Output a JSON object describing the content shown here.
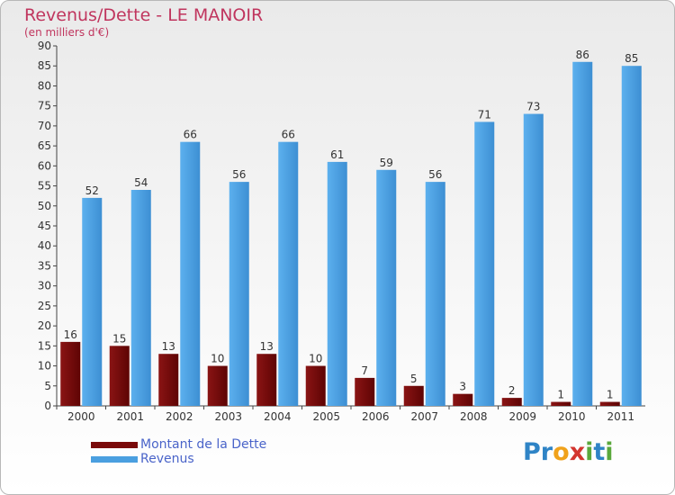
{
  "chart_data": {
    "type": "bar",
    "title": "Revenus/Dette - LE MANOIR",
    "subtitle": "(en milliers d'€)",
    "categories": [
      "2000",
      "2001",
      "2002",
      "2003",
      "2004",
      "2005",
      "2006",
      "2007",
      "2008",
      "2009",
      "2010",
      "2011"
    ],
    "series": [
      {
        "name": "Montant de la Dette",
        "color": "#7a0a0a",
        "values": [
          16,
          15,
          13,
          10,
          13,
          10,
          7,
          5,
          3,
          2,
          1,
          1
        ]
      },
      {
        "name": "Revenus",
        "color": "#4a9fe0",
        "values": [
          52,
          54,
          66,
          56,
          66,
          61,
          59,
          56,
          71,
          73,
          86,
          85
        ]
      }
    ],
    "ylim": [
      0,
      90
    ],
    "yticks": [
      0,
      5,
      10,
      15,
      20,
      25,
      30,
      35,
      40,
      45,
      50,
      55,
      60,
      65,
      70,
      75,
      80,
      85,
      90
    ],
    "grid": false,
    "legend": "bottom-left"
  },
  "logo": {
    "letters": [
      {
        "ch": "P",
        "color": "#2f84c6"
      },
      {
        "ch": "r",
        "color": "#2f84c6"
      },
      {
        "ch": "o",
        "color": "#f0a21b"
      },
      {
        "ch": "x",
        "color": "#d3352f"
      },
      {
        "ch": "i",
        "color": "#5aa83c"
      },
      {
        "ch": "t",
        "color": "#2f84c6"
      },
      {
        "ch": "i",
        "color": "#5aa83c"
      }
    ]
  }
}
